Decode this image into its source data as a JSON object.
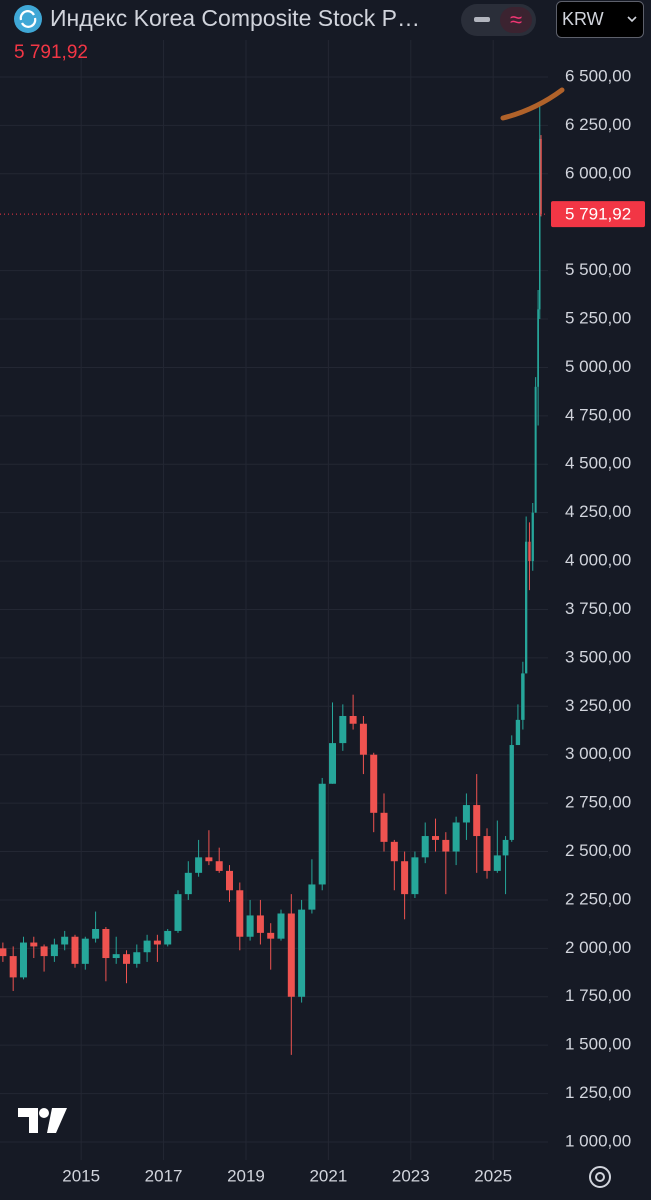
{
  "header": {
    "title": "Индекс Korea Composite Stock P…",
    "currency": "KRW"
  },
  "chart_data": {
    "type": "candlestick",
    "last": {
      "value": 5791.92,
      "label": "5 791,92"
    },
    "up_color": "#26a69a",
    "down_color": "#ef5350",
    "grid": true,
    "xlim": [
      2013.03,
      2026.33
    ],
    "xticks": [
      2015,
      2017,
      2019,
      2021,
      2023,
      2025
    ],
    "ylim": [
      907,
      6691
    ],
    "yticks": [
      {
        "value": 1000,
        "label": "1 000,00"
      },
      {
        "value": 1250,
        "label": "1 250,00"
      },
      {
        "value": 1500,
        "label": "1 500,00"
      },
      {
        "value": 1750,
        "label": "1 750,00"
      },
      {
        "value": 2000,
        "label": "2 000,00"
      },
      {
        "value": 2250,
        "label": "2 250,00"
      },
      {
        "value": 2500,
        "label": "2 500,00"
      },
      {
        "value": 2750,
        "label": "2 750,00"
      },
      {
        "value": 3000,
        "label": "3 000,00"
      },
      {
        "value": 3250,
        "label": "3 250,00"
      },
      {
        "value": 3500,
        "label": "3 500,00"
      },
      {
        "value": 3750,
        "label": "3 750,00"
      },
      {
        "value": 4000,
        "label": "4 000,00"
      },
      {
        "value": 4250,
        "label": "4 250,00"
      },
      {
        "value": 4500,
        "label": "4 500,00"
      },
      {
        "value": 4750,
        "label": "4 750,00"
      },
      {
        "value": 5000,
        "label": "5 000,00"
      },
      {
        "value": 5250,
        "label": "5 250,00"
      },
      {
        "value": 5500,
        "label": "5 500,00"
      },
      {
        "value": 6000,
        "label": "6 000,00"
      },
      {
        "value": 6250,
        "label": "6 250,00"
      },
      {
        "value": 6500,
        "label": "6 500,00"
      }
    ],
    "x": [
      2013.1,
      2013.35,
      2013.6,
      2013.85,
      2014.1,
      2014.35,
      2014.6,
      2014.85,
      2015.1,
      2015.35,
      2015.6,
      2015.85,
      2016.1,
      2016.35,
      2016.6,
      2016.85,
      2017.1,
      2017.35,
      2017.6,
      2017.85,
      2018.1,
      2018.35,
      2018.6,
      2018.85,
      2019.1,
      2019.35,
      2019.6,
      2019.85,
      2020.1,
      2020.35,
      2020.6,
      2020.85,
      2021.1,
      2021.35,
      2021.6,
      2021.85,
      2022.1,
      2022.35,
      2022.6,
      2022.85,
      2023.1,
      2023.35,
      2023.6,
      2023.85,
      2024.1,
      2024.35,
      2024.6,
      2024.85,
      2025.1,
      2025.3,
      2025.45,
      2025.6,
      2025.72,
      2025.8,
      2025.88,
      2025.96,
      2026.03,
      2026.09,
      2026.13,
      2026.16
    ],
    "open": [
      2000,
      1960,
      1850,
      2030,
      2010,
      1960,
      2020,
      2060,
      1920,
      2050,
      2100,
      1950,
      1970,
      1920,
      1980,
      2040,
      2020,
      2090,
      2280,
      2390,
      2470,
      2450,
      2400,
      2300,
      2060,
      2170,
      2080,
      2050,
      2180,
      1750,
      2200,
      2330,
      2850,
      3060,
      3200,
      3160,
      3000,
      2700,
      2550,
      2450,
      2280,
      2470,
      2580,
      2560,
      2500,
      2650,
      2740,
      2580,
      2400,
      2480,
      2560,
      3050,
      3180,
      3420,
      4100,
      4000,
      4250,
      4900,
      5300,
      6180
    ],
    "high": [
      2030,
      2010,
      2060,
      2060,
      2020,
      2050,
      2090,
      2070,
      2060,
      2190,
      2110,
      2060,
      1990,
      2020,
      2070,
      2070,
      2100,
      2300,
      2450,
      2560,
      2610,
      2520,
      2430,
      2340,
      2250,
      2250,
      2130,
      2200,
      2280,
      2250,
      2460,
      2880,
      3270,
      3260,
      3310,
      3200,
      3010,
      2800,
      2560,
      2500,
      2500,
      2650,
      2670,
      2600,
      2680,
      2800,
      2900,
      2620,
      2660,
      2580,
      3100,
      3260,
      3480,
      4230,
      4200,
      4300,
      4950,
      5400,
      6355,
      6200
    ],
    "low": [
      1930,
      1780,
      1840,
      1950,
      1880,
      1930,
      1990,
      1900,
      1890,
      2030,
      1830,
      1920,
      1820,
      1900,
      1930,
      1930,
      2010,
      2080,
      2250,
      2370,
      2430,
      2390,
      2240,
      1990,
      2040,
      2020,
      1890,
      2040,
      1450,
      1720,
      2180,
      2300,
      2850,
      3020,
      3130,
      2900,
      2600,
      2500,
      2300,
      2150,
      2260,
      2440,
      2500,
      2280,
      2430,
      2560,
      2390,
      2360,
      2390,
      2280,
      2550,
      3050,
      3130,
      3420,
      3850,
      3950,
      4250,
      4700,
      5250,
      5780
    ],
    "close": [
      1960,
      1850,
      2030,
      2010,
      1960,
      2020,
      2060,
      1920,
      2050,
      2100,
      1950,
      1970,
      1920,
      1980,
      2040,
      2020,
      2090,
      2280,
      2390,
      2470,
      2450,
      2400,
      2300,
      2060,
      2170,
      2080,
      2050,
      2180,
      1750,
      2200,
      2330,
      2850,
      3060,
      3200,
      3160,
      3000,
      2700,
      2550,
      2450,
      2280,
      2470,
      2580,
      2560,
      2500,
      2650,
      2740,
      2580,
      2400,
      2480,
      2560,
      3050,
      3180,
      3420,
      4100,
      4000,
      4250,
      4900,
      5300,
      6180,
      5791.92
    ]
  }
}
